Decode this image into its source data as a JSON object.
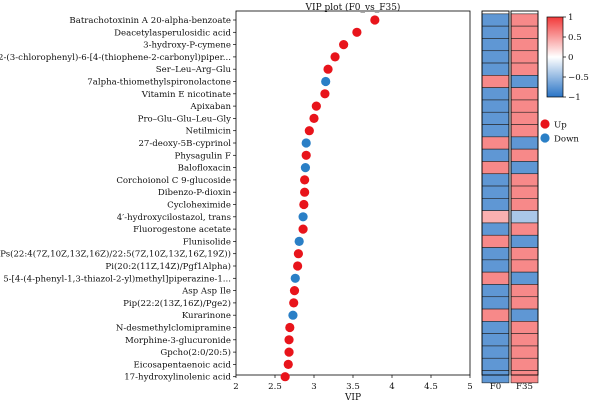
{
  "chart_data": {
    "type": "scatter",
    "title": "VIP plot (F0_vs_F35)",
    "xlabel": "VIP",
    "xlim": [
      2,
      5
    ],
    "xticks": [
      "2",
      "2.5",
      "3",
      "3.5",
      "4",
      "4.5",
      "5"
    ],
    "legend": {
      "position": "right",
      "entries": [
        {
          "label": "Up",
          "color": "#e8141b"
        },
        {
          "label": "Down",
          "color": "#2a7fc6"
        }
      ]
    },
    "series": [
      {
        "name": "Up",
        "color": "#e8141b"
      },
      {
        "name": "Down",
        "color": "#2a7fc6"
      }
    ],
    "points": [
      {
        "label": "Batrachotoxinin A 20-alpha-benzoate",
        "vip": 3.78,
        "group": "Up",
        "F0": -0.75,
        "F35": 0.6
      },
      {
        "label": "Deacetylasperulosidic acid",
        "vip": 3.55,
        "group": "Up",
        "F0": -0.75,
        "F35": 0.6
      },
      {
        "label": "3-hydroxy-P-cymene",
        "vip": 3.38,
        "group": "Up",
        "F0": -0.75,
        "F35": 0.6
      },
      {
        "label": "2-(3-chlorophenyl)-6-[4-(thiophene-2-carbonyl)piper...",
        "vip": 3.27,
        "group": "Up",
        "F0": -0.75,
        "F35": 0.6
      },
      {
        "label": "Ser–Leu–Arg–Glu",
        "vip": 3.18,
        "group": "Up",
        "F0": -0.75,
        "F35": 0.6
      },
      {
        "label": "7alpha-thiomethylspironolactone",
        "vip": 3.15,
        "group": "Down",
        "F0": 0.6,
        "F35": -0.75
      },
      {
        "label": "Vitamin E nicotinate",
        "vip": 3.14,
        "group": "Up",
        "F0": -0.75,
        "F35": 0.6
      },
      {
        "label": "Apixaban",
        "vip": 3.03,
        "group": "Up",
        "F0": -0.75,
        "F35": 0.6
      },
      {
        "label": "Pro–Glu–Glu–Leu–Gly",
        "vip": 3.0,
        "group": "Up",
        "F0": -0.75,
        "F35": 0.6
      },
      {
        "label": "Netilmicin",
        "vip": 2.94,
        "group": "Up",
        "F0": -0.75,
        "F35": 0.6
      },
      {
        "label": "27-deoxy-5B-cyprinol",
        "vip": 2.9,
        "group": "Down",
        "F0": 0.6,
        "F35": -0.75
      },
      {
        "label": "Physagulin F",
        "vip": 2.9,
        "group": "Up",
        "F0": -0.75,
        "F35": 0.6
      },
      {
        "label": "Balofloxacin",
        "vip": 2.89,
        "group": "Down",
        "F0": 0.6,
        "F35": -0.75
      },
      {
        "label": "Corchoionol C 9-glucoside",
        "vip": 2.88,
        "group": "Up",
        "F0": -0.75,
        "F35": 0.6
      },
      {
        "label": "Dibenzo-P-dioxin",
        "vip": 2.88,
        "group": "Up",
        "F0": -0.75,
        "F35": 0.6
      },
      {
        "label": "Cycloheximide",
        "vip": 2.87,
        "group": "Up",
        "F0": -0.75,
        "F35": 0.6
      },
      {
        "label": "4′-hydroxycilostazol, trans",
        "vip": 2.86,
        "group": "Down",
        "F0": 0.4,
        "F35": -0.4
      },
      {
        "label": "Fluorogestone acetate",
        "vip": 2.86,
        "group": "Up",
        "F0": -0.75,
        "F35": 0.6
      },
      {
        "label": "Flunisolide",
        "vip": 2.81,
        "group": "Down",
        "F0": 0.6,
        "F35": -0.75
      },
      {
        "label": "Ps(22:4(7Z,10Z,13Z,16Z)/22:5(7Z,10Z,13Z,16Z,19Z))",
        "vip": 2.8,
        "group": "Up",
        "F0": -0.75,
        "F35": 0.6
      },
      {
        "label": "Pi(20:2(11Z,14Z)/Pgf1Alpha)",
        "vip": 2.79,
        "group": "Up",
        "F0": -0.75,
        "F35": 0.6
      },
      {
        "label": "5-[4-(4-phenyl-1,3-thiazol-2-yl)methyl]piperazine-1...",
        "vip": 2.76,
        "group": "Down",
        "F0": 0.6,
        "F35": -0.75
      },
      {
        "label": "Asp Asp Ile",
        "vip": 2.75,
        "group": "Up",
        "F0": -0.75,
        "F35": 0.6
      },
      {
        "label": "Pip(22:2(13Z,16Z)/Pge2)",
        "vip": 2.74,
        "group": "Up",
        "F0": -0.75,
        "F35": 0.6
      },
      {
        "label": "Kurarinone",
        "vip": 2.73,
        "group": "Down",
        "F0": 0.6,
        "F35": -0.75
      },
      {
        "label": "N-desmethylclomipramine",
        "vip": 2.69,
        "group": "Up",
        "F0": -0.75,
        "F35": 0.6
      },
      {
        "label": "Morphine-3-glucuronide",
        "vip": 2.68,
        "group": "Up",
        "F0": -0.75,
        "F35": 0.6
      },
      {
        "label": "Gpcho(2:0/20:5)",
        "vip": 2.68,
        "group": "Up",
        "F0": -0.75,
        "F35": 0.6
      },
      {
        "label": "Eicosapentaenoic acid",
        "vip": 2.67,
        "group": "Up",
        "F0": -0.75,
        "F35": 0.6
      },
      {
        "label": "17-hydroxylinolenic acid",
        "vip": 2.63,
        "group": "Up",
        "F0": -0.75,
        "F35": 0.6
      }
    ],
    "heatmap": {
      "columns": [
        "F0",
        "F35"
      ],
      "colorbar": {
        "min": -1,
        "max": 1,
        "ticks": [
          "1",
          "0.5",
          "0",
          "−0.5",
          "−1"
        ],
        "low_color": "#2a74c6",
        "mid_color": "#ffffff",
        "high_color": "#f23a3a"
      }
    },
    "grid": false
  }
}
